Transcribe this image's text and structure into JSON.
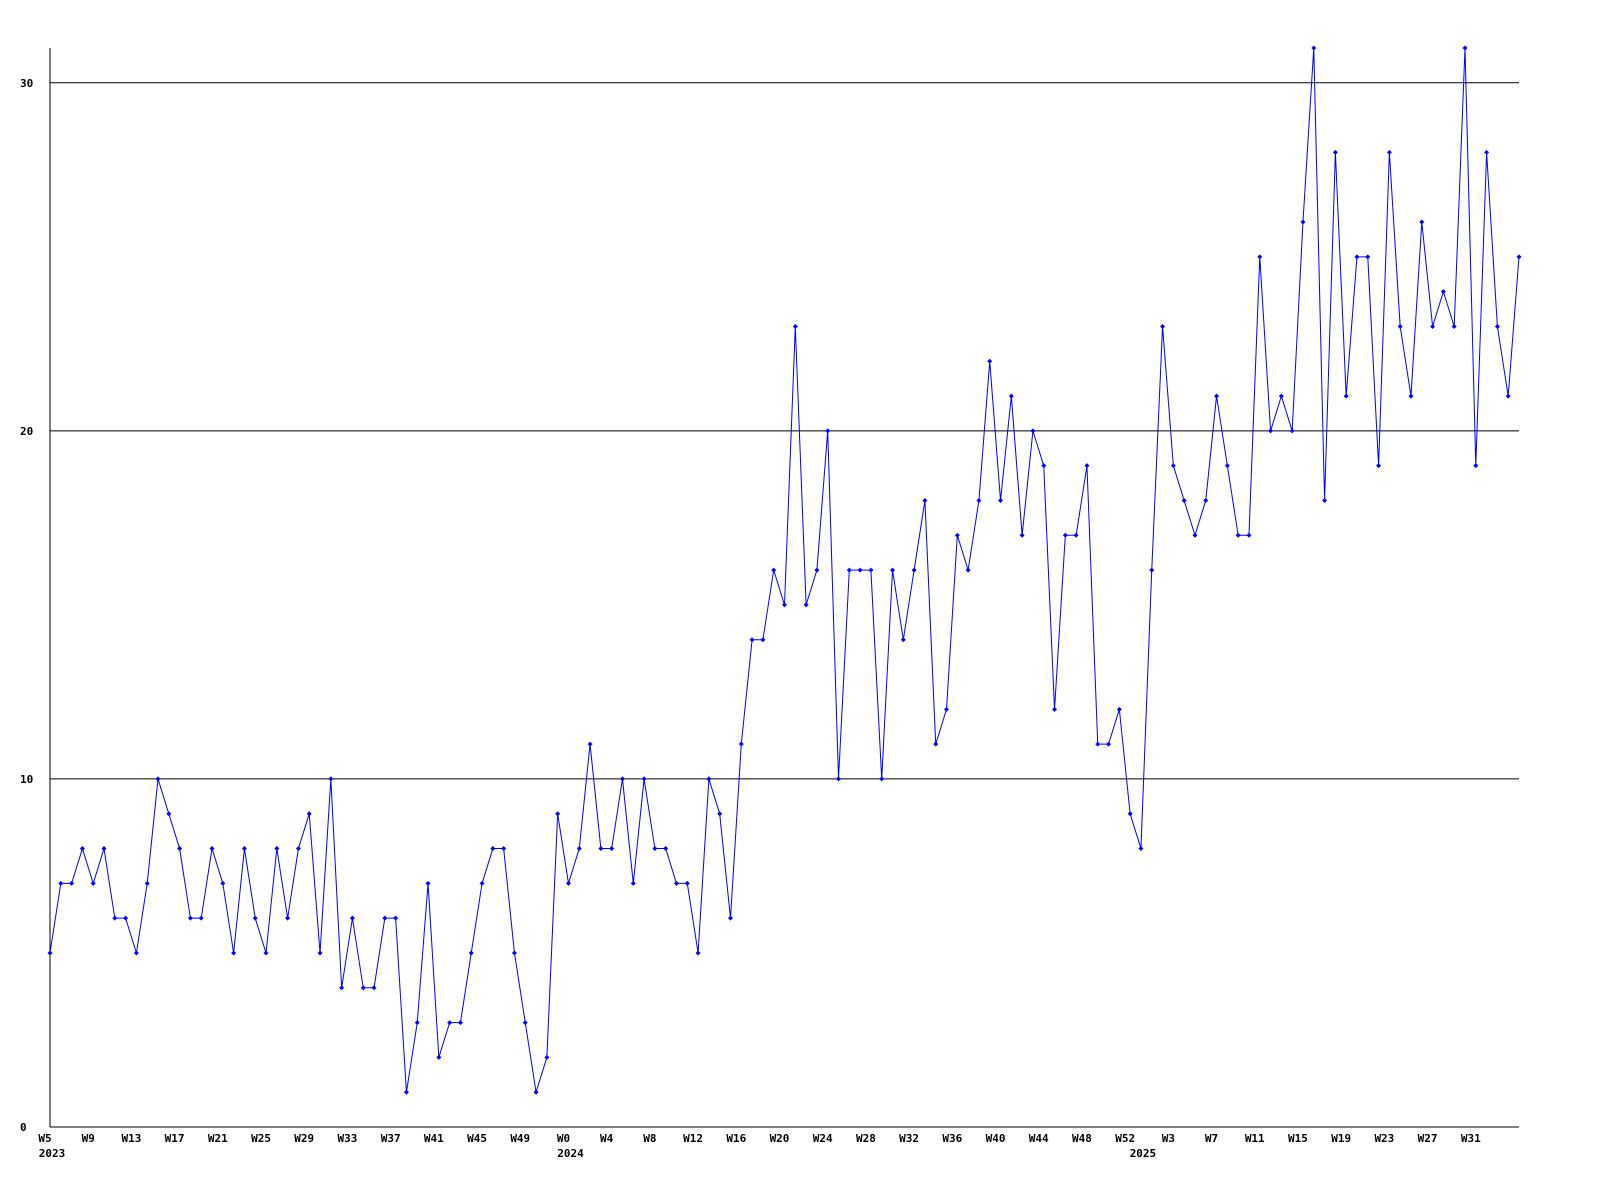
{
  "chart_data": {
    "type": "line",
    "categories": [
      "W5",
      null,
      null,
      null,
      "W9",
      null,
      null,
      null,
      "W13",
      null,
      null,
      null,
      "W17",
      null,
      null,
      null,
      "W21",
      null,
      null,
      null,
      "W25",
      null,
      null,
      null,
      "W29",
      null,
      null,
      null,
      "W33",
      null,
      null,
      null,
      "W37",
      null,
      null,
      null,
      "W41",
      null,
      null,
      null,
      "W45",
      null,
      null,
      null,
      "W49",
      null,
      null,
      null,
      "W0",
      null,
      null,
      null,
      "W4",
      null,
      null,
      null,
      "W8",
      null,
      null,
      null,
      "W12",
      null,
      null,
      null,
      "W16",
      null,
      null,
      null,
      "W20",
      null,
      null,
      null,
      "W24",
      null,
      null,
      null,
      "W28",
      null,
      null,
      null,
      "W32",
      null,
      null,
      null,
      "W36",
      null,
      null,
      null,
      "W40",
      null,
      null,
      null,
      "W44",
      null,
      null,
      null,
      "W48",
      null,
      null,
      null,
      "W52",
      null,
      null,
      null,
      "W3",
      null,
      null,
      null,
      "W7",
      null,
      null,
      null,
      "W11",
      null,
      null,
      null,
      "W15",
      null,
      null,
      null,
      "W19",
      null,
      null,
      null,
      "W23",
      null,
      null,
      null,
      "W27",
      null,
      null,
      null,
      "W31",
      null,
      null,
      null,
      null
    ],
    "years": [
      "2023",
      null,
      null,
      null,
      null,
      null,
      null,
      null,
      null,
      null,
      null,
      null,
      null,
      null,
      null,
      null,
      null,
      null,
      null,
      null,
      null,
      null,
      null,
      null,
      null,
      null,
      null,
      null,
      null,
      null,
      null,
      null,
      null,
      null,
      null,
      null,
      null,
      null,
      null,
      null,
      null,
      null,
      null,
      null,
      null,
      null,
      null,
      null,
      "2024",
      null,
      null,
      null,
      null,
      null,
      null,
      null,
      null,
      null,
      null,
      null,
      null,
      null,
      null,
      null,
      null,
      null,
      null,
      null,
      null,
      null,
      null,
      null,
      null,
      null,
      null,
      null,
      null,
      null,
      null,
      null,
      null,
      null,
      null,
      null,
      null,
      null,
      null,
      null,
      null,
      null,
      null,
      null,
      null,
      null,
      null,
      null,
      null,
      null,
      null,
      null,
      null,
      "2025",
      null,
      null,
      null,
      null,
      null,
      null,
      null,
      null,
      null,
      null,
      null,
      null,
      null,
      null,
      null,
      null,
      null,
      null,
      null,
      null,
      null,
      null,
      null,
      null,
      null,
      null,
      null,
      null,
      null,
      null,
      null,
      null,
      null,
      null,
      null
    ],
    "values": [
      5,
      7,
      7,
      8,
      7,
      8,
      6,
      6,
      5,
      7,
      10,
      9,
      8,
      6,
      6,
      8,
      7,
      5,
      8,
      6,
      5,
      8,
      6,
      8,
      9,
      5,
      10,
      4,
      6,
      4,
      4,
      6,
      6,
      1,
      3,
      7,
      2,
      3,
      3,
      5,
      7,
      8,
      8,
      5,
      3,
      1,
      2,
      9,
      7,
      8,
      11,
      8,
      8,
      10,
      7,
      10,
      8,
      8,
      7,
      7,
      5,
      10,
      9,
      6,
      11,
      14,
      14,
      16,
      15,
      23,
      15,
      16,
      20,
      10,
      16,
      16,
      16,
      10,
      16,
      14,
      16,
      18,
      11,
      12,
      17,
      16,
      18,
      22,
      18,
      21,
      17,
      20,
      19,
      12,
      17,
      17,
      19,
      11,
      11,
      12,
      9,
      8,
      16,
      23,
      19,
      18,
      17,
      18,
      21,
      19,
      17,
      17,
      25,
      20,
      21,
      20,
      26,
      31,
      18,
      28,
      21,
      25,
      25,
      19,
      28,
      23,
      21,
      26,
      23,
      24,
      23,
      31,
      19,
      28,
      23,
      21,
      25
    ],
    "color": "#0000ff",
    "ylim": [
      0,
      31
    ],
    "yticks": [
      0,
      10,
      20,
      30
    ],
    "grid": true
  }
}
